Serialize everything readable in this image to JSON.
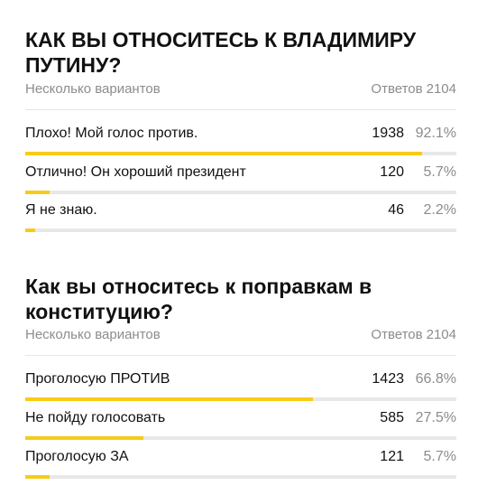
{
  "polls": [
    {
      "title": "КАК ВЫ ОТНОСИТЕСЬ К ВЛАДИМИРУ ПУТИНУ?",
      "subtitle": "Несколько вариантов",
      "answers_label": "Ответов",
      "answers_total": "2104",
      "options": [
        {
          "label": "Плохо! Мой голос против.",
          "votes": "1938",
          "percent": "92.1%",
          "fraction": 0.921
        },
        {
          "label": "Отлично! Он хороший президент",
          "votes": "120",
          "percent": "5.7%",
          "fraction": 0.057
        },
        {
          "label": "Я не знаю.",
          "votes": "46",
          "percent": "2.2%",
          "fraction": 0.022
        }
      ]
    },
    {
      "title": "Как вы относитесь к поправкам в конституцию?",
      "subtitle": "Несколько вариантов",
      "answers_label": "Ответов",
      "answers_total": "2104",
      "options": [
        {
          "label": "Проголосую ПРОТИВ",
          "votes": "1423",
          "percent": "66.8%",
          "fraction": 0.668
        },
        {
          "label": "Не пойду голосовать",
          "votes": "585",
          "percent": "27.5%",
          "fraction": 0.275
        },
        {
          "label": "Проголосую ЗА",
          "votes": "121",
          "percent": "5.7%",
          "fraction": 0.057
        }
      ]
    }
  ],
  "colors": {
    "bar_fill": "#f7cc17",
    "bar_track": "#e8e8e8",
    "muted_text": "#8c8c8c"
  }
}
